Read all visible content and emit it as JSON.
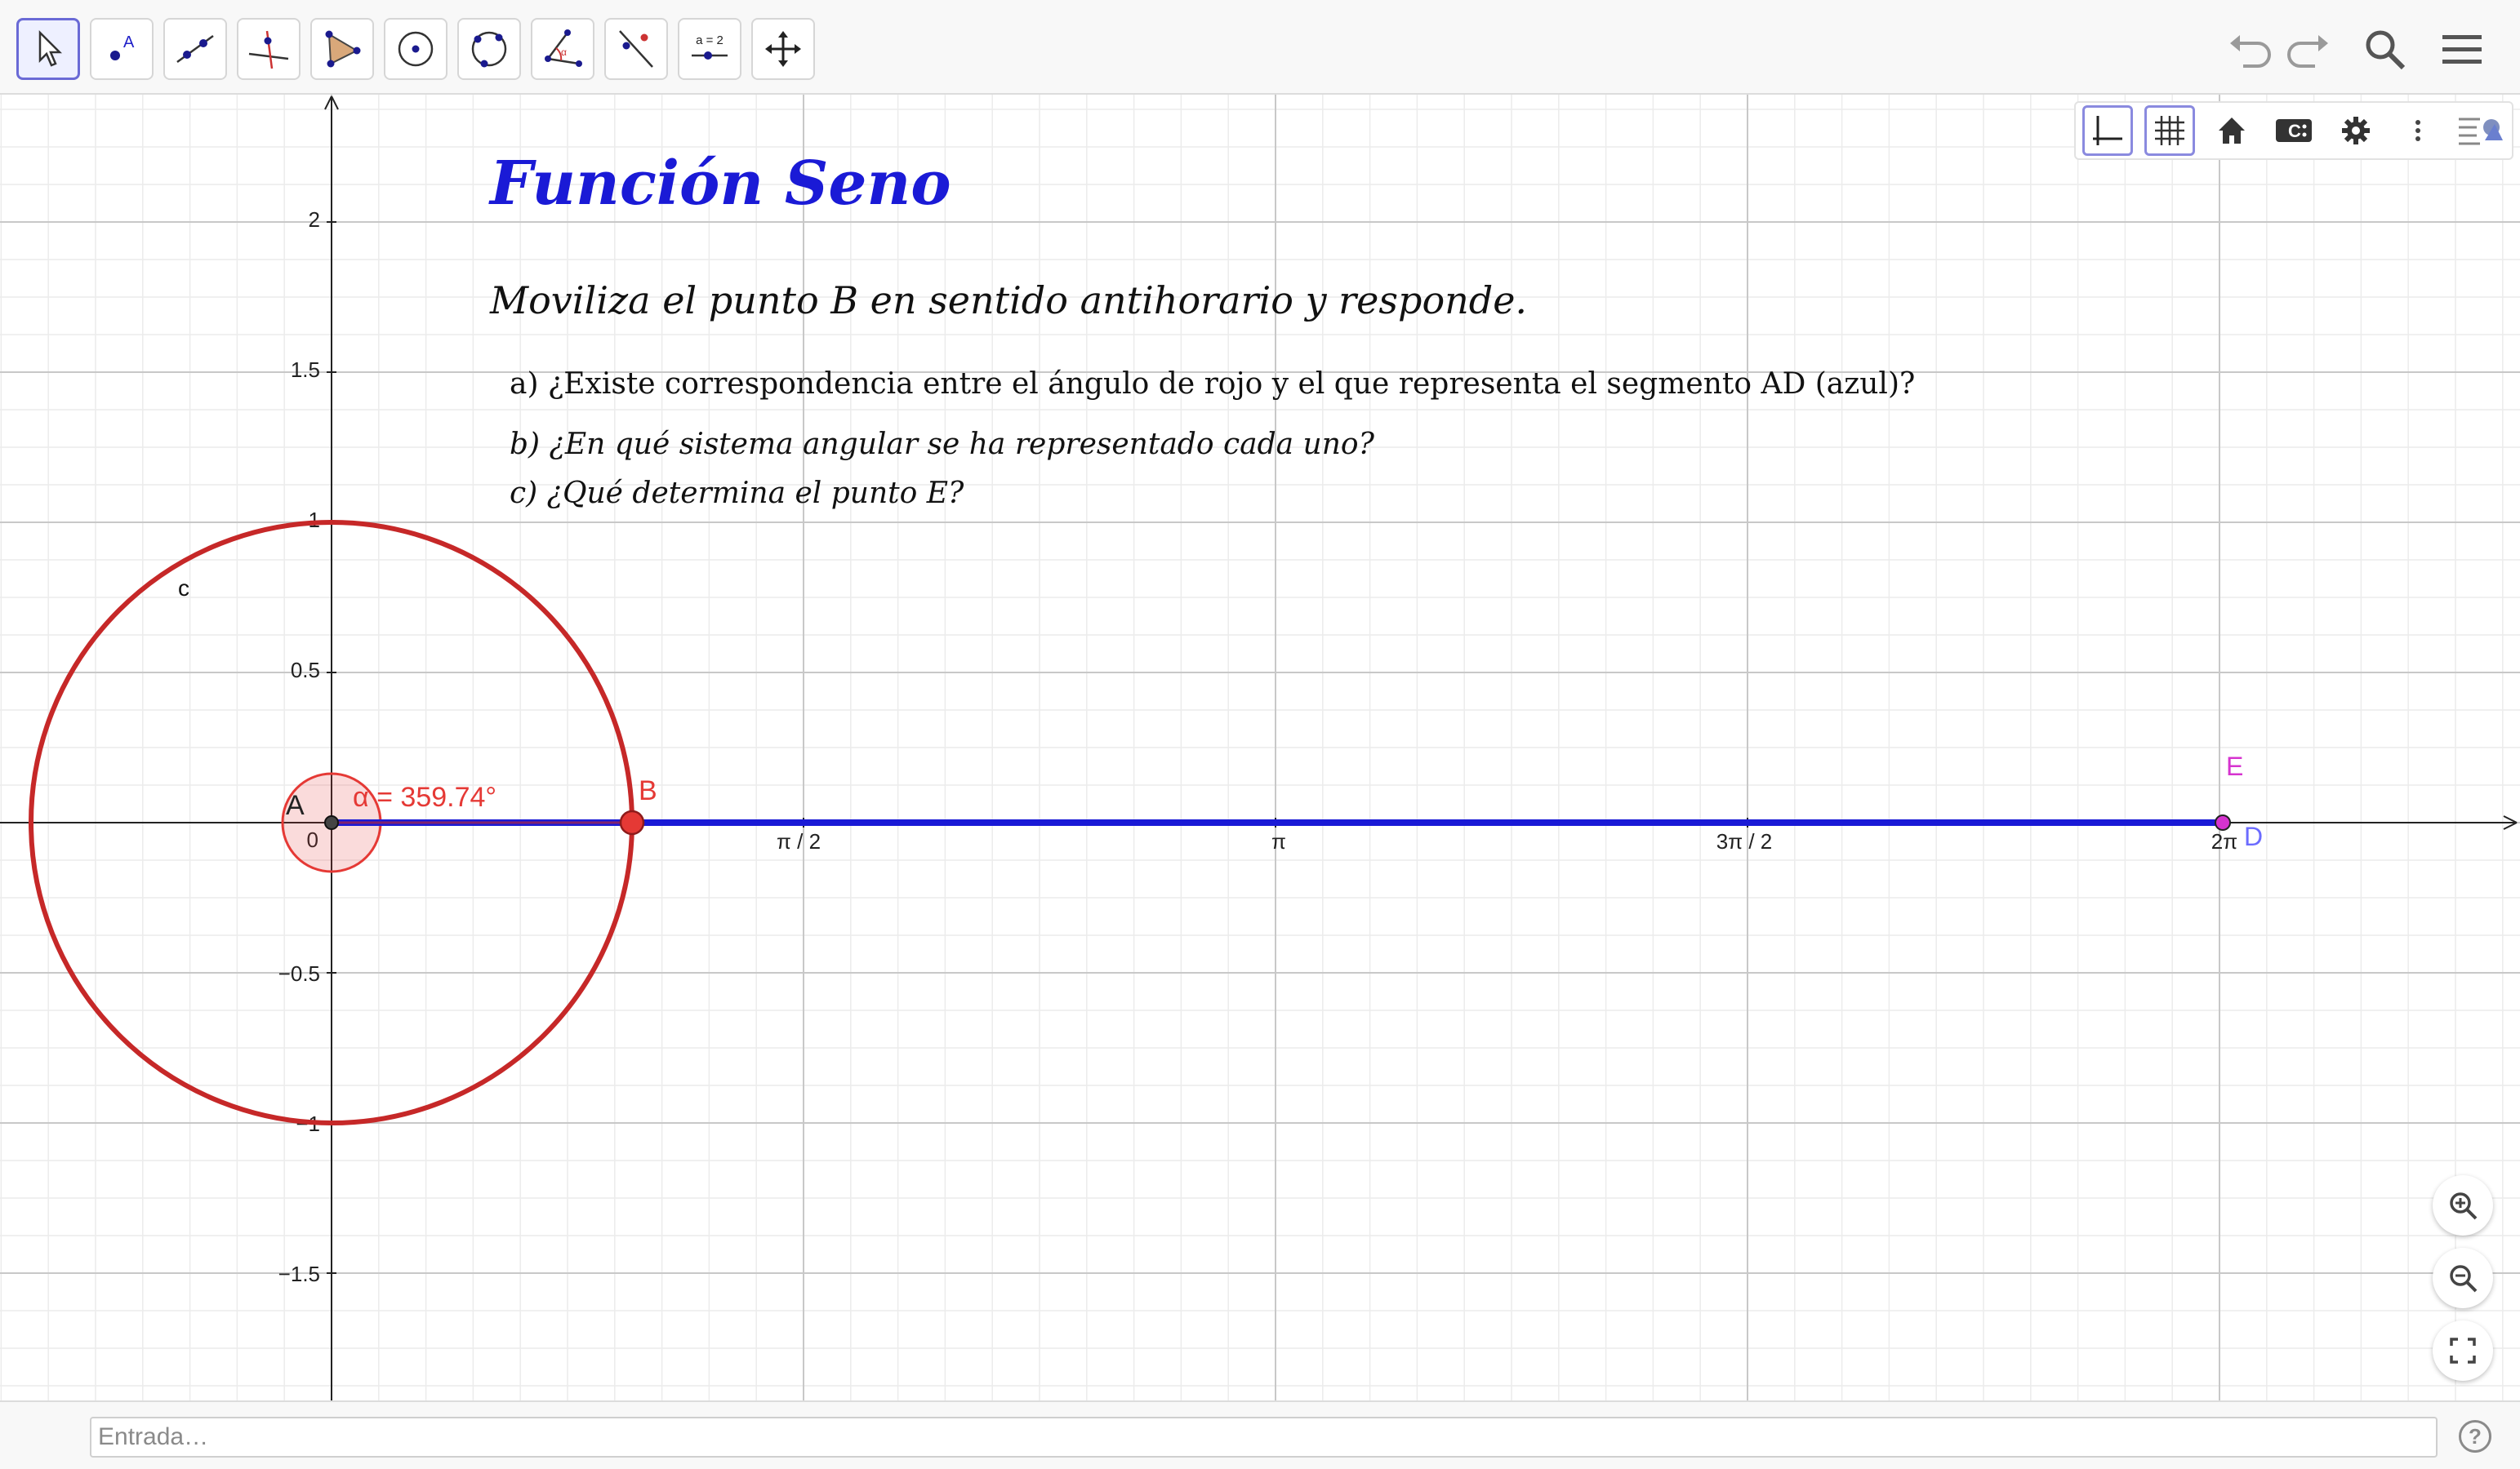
{
  "toolbar": {
    "tools": [
      {
        "name": "move-tool",
        "label": ""
      },
      {
        "name": "point-tool",
        "label": "A"
      },
      {
        "name": "line-tool",
        "label": ""
      },
      {
        "name": "perpendicular-line-tool",
        "label": ""
      },
      {
        "name": "polygon-tool",
        "label": ""
      },
      {
        "name": "circle-center-point-tool",
        "label": ""
      },
      {
        "name": "circle-three-points-tool",
        "label": ""
      },
      {
        "name": "angle-tool",
        "label": "α"
      },
      {
        "name": "reflect-tool",
        "label": ""
      },
      {
        "name": "slider-tool",
        "label": "a = 2"
      },
      {
        "name": "move-graphics-view-tool",
        "label": ""
      }
    ],
    "right_icons": [
      "undo-icon",
      "redo-icon",
      "search-icon",
      "menu-icon"
    ]
  },
  "stylebar": {
    "buttons": [
      "axes-icon",
      "grid-icon",
      "home-icon",
      "graphics-view-icon",
      "settings-icon",
      "more-icon",
      "toggle-stylebar-icon"
    ]
  },
  "content": {
    "title": "Función Seno",
    "instruction": "Moviliza el punto B en sentido antihorario y responde.",
    "question_a": "a)  ¿Existe correspondencia entre el ángulo de rojo y el que representa el segmento AD (azul)?",
    "question_b": "b)   ¿En qué sistema angular se ha representado cada uno?",
    "question_c": "c)  ¿Qué determina el punto E?"
  },
  "axes": {
    "y_ticks": [
      "2",
      "1.5",
      "1",
      "0.5",
      "−0.5",
      "−1",
      "−1.5"
    ],
    "origin_label": "0",
    "x_ticks": [
      "π / 2",
      "π",
      "3π / 2",
      "2π"
    ]
  },
  "objects": {
    "circle_label": "c",
    "point_a": "A",
    "point_b": "B",
    "point_d": "D",
    "point_e": "E",
    "angle_label": "α = 359.74°",
    "angle_value_deg": 359.74,
    "colors": {
      "circle": "#c62828",
      "segment": "#1a1ad6",
      "angle": "#e53935",
      "point_e": "#d633cf",
      "point_d": "#6b6bff"
    }
  },
  "zoom": [
    "zoom-in-icon",
    "zoom-out-icon",
    "fullscreen-icon"
  ],
  "input": {
    "placeholder": "Entrada…",
    "help": "?"
  }
}
